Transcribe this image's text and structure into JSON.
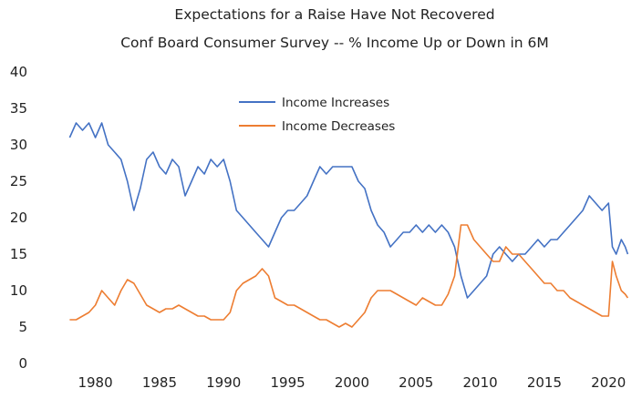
{
  "chart_data": {
    "type": "line",
    "title": "Expectations for a Raise Have Not Recovered",
    "subtitle": "Conf Board Consumer Survey -- % Income Up or Down in 6M",
    "xlabel": "",
    "ylabel": "",
    "xlim": [
      1977.4,
      2021.9
    ],
    "ylim": [
      0,
      40
    ],
    "grid": false,
    "legend_position": "top-center",
    "x_ticks": [
      1980,
      1985,
      1990,
      1995,
      2000,
      2005,
      2010,
      2015,
      2020
    ],
    "y_ticks": [
      0,
      5,
      10,
      15,
      20,
      25,
      30,
      35,
      40
    ],
    "series": [
      {
        "name": "Income Increases",
        "color": "#4472C4",
        "x": [
          1978.0,
          1978.5,
          1979.0,
          1979.5,
          1980.0,
          1980.5,
          1981.0,
          1981.5,
          1982.0,
          1982.5,
          1983.0,
          1983.5,
          1984.0,
          1984.5,
          1985.0,
          1985.5,
          1986.0,
          1986.5,
          1987.0,
          1987.5,
          1988.0,
          1988.5,
          1989.0,
          1989.5,
          1990.0,
          1990.5,
          1991.0,
          1991.5,
          1992.0,
          1992.5,
          1993.0,
          1993.5,
          1994.0,
          1994.5,
          1995.0,
          1995.5,
          1996.0,
          1996.5,
          1997.0,
          1997.5,
          1998.0,
          1998.5,
          1999.0,
          1999.5,
          2000.0,
          2000.5,
          2001.0,
          2001.5,
          2002.0,
          2002.5,
          2003.0,
          2003.5,
          2004.0,
          2004.5,
          2005.0,
          2005.5,
          2006.0,
          2006.5,
          2007.0,
          2007.5,
          2008.0,
          2008.5,
          2009.0,
          2009.5,
          2010.0,
          2010.5,
          2011.0,
          2011.5,
          2012.0,
          2012.5,
          2013.0,
          2013.5,
          2014.0,
          2014.5,
          2015.0,
          2015.5,
          2016.0,
          2016.5,
          2017.0,
          2017.5,
          2018.0,
          2018.5,
          2019.0,
          2019.5,
          2020.0,
          2020.3,
          2020.6,
          2021.0,
          2021.3,
          2021.5
        ],
        "values": [
          31,
          33,
          32,
          33,
          31,
          33,
          30,
          29,
          28,
          25,
          21,
          24,
          28,
          29,
          27,
          26,
          28,
          27,
          23,
          25,
          27,
          26,
          28,
          27,
          28,
          25,
          21,
          20,
          19,
          18,
          17,
          16,
          18,
          20,
          21,
          21,
          22,
          23,
          25,
          27,
          26,
          27,
          27,
          27,
          27,
          25,
          24,
          21,
          19,
          18,
          16,
          17,
          18,
          18,
          19,
          18,
          19,
          18,
          19,
          18,
          16,
          12,
          9,
          10,
          11,
          12,
          15,
          16,
          15,
          14,
          15,
          15,
          16,
          17,
          16,
          17,
          17,
          18,
          19,
          20,
          21,
          23,
          22,
          21,
          22,
          16,
          15,
          17,
          16,
          15
        ]
      },
      {
        "name": "Income Decreases",
        "color": "#ED7D31",
        "x": [
          1978.0,
          1978.5,
          1979.0,
          1979.5,
          1980.0,
          1980.5,
          1981.0,
          1981.5,
          1982.0,
          1982.5,
          1983.0,
          1983.5,
          1984.0,
          1984.5,
          1985.0,
          1985.5,
          1986.0,
          1986.5,
          1987.0,
          1987.5,
          1988.0,
          1988.5,
          1989.0,
          1989.5,
          1990.0,
          1990.5,
          1991.0,
          1991.5,
          1992.0,
          1992.5,
          1993.0,
          1993.5,
          1994.0,
          1994.5,
          1995.0,
          1995.5,
          1996.0,
          1996.5,
          1997.0,
          1997.5,
          1998.0,
          1998.5,
          1999.0,
          1999.5,
          2000.0,
          2000.5,
          2001.0,
          2001.5,
          2002.0,
          2002.5,
          2003.0,
          2003.5,
          2004.0,
          2004.5,
          2005.0,
          2005.5,
          2006.0,
          2006.5,
          2007.0,
          2007.5,
          2008.0,
          2008.5,
          2009.0,
          2009.5,
          2010.0,
          2010.5,
          2011.0,
          2011.5,
          2012.0,
          2012.5,
          2013.0,
          2013.5,
          2014.0,
          2014.5,
          2015.0,
          2015.5,
          2016.0,
          2016.5,
          2017.0,
          2017.5,
          2018.0,
          2018.5,
          2019.0,
          2019.5,
          2020.0,
          2020.3,
          2020.6,
          2021.0,
          2021.3,
          2021.5
        ],
        "values": [
          6,
          6,
          6.5,
          7,
          8,
          10,
          9,
          8,
          10,
          11.5,
          11,
          9.5,
          8,
          7.5,
          7,
          7.5,
          7.5,
          8,
          7.5,
          7,
          6.5,
          6.5,
          6,
          6,
          6,
          7,
          10,
          11,
          11.5,
          12,
          13,
          12,
          9,
          8.5,
          8,
          8,
          7.5,
          7,
          6.5,
          6,
          6,
          5.5,
          5,
          5.5,
          5,
          6,
          7,
          9,
          10,
          10,
          10,
          9.5,
          9,
          8.5,
          8,
          9,
          8.5,
          8,
          8,
          9.5,
          12,
          19,
          19,
          17,
          16,
          15,
          14,
          14,
          16,
          15,
          15,
          14,
          13,
          12,
          11,
          11,
          10,
          10,
          9,
          8.5,
          8,
          7.5,
          7,
          6.5,
          6.5,
          14,
          12,
          10,
          9.5,
          9
        ]
      }
    ]
  }
}
